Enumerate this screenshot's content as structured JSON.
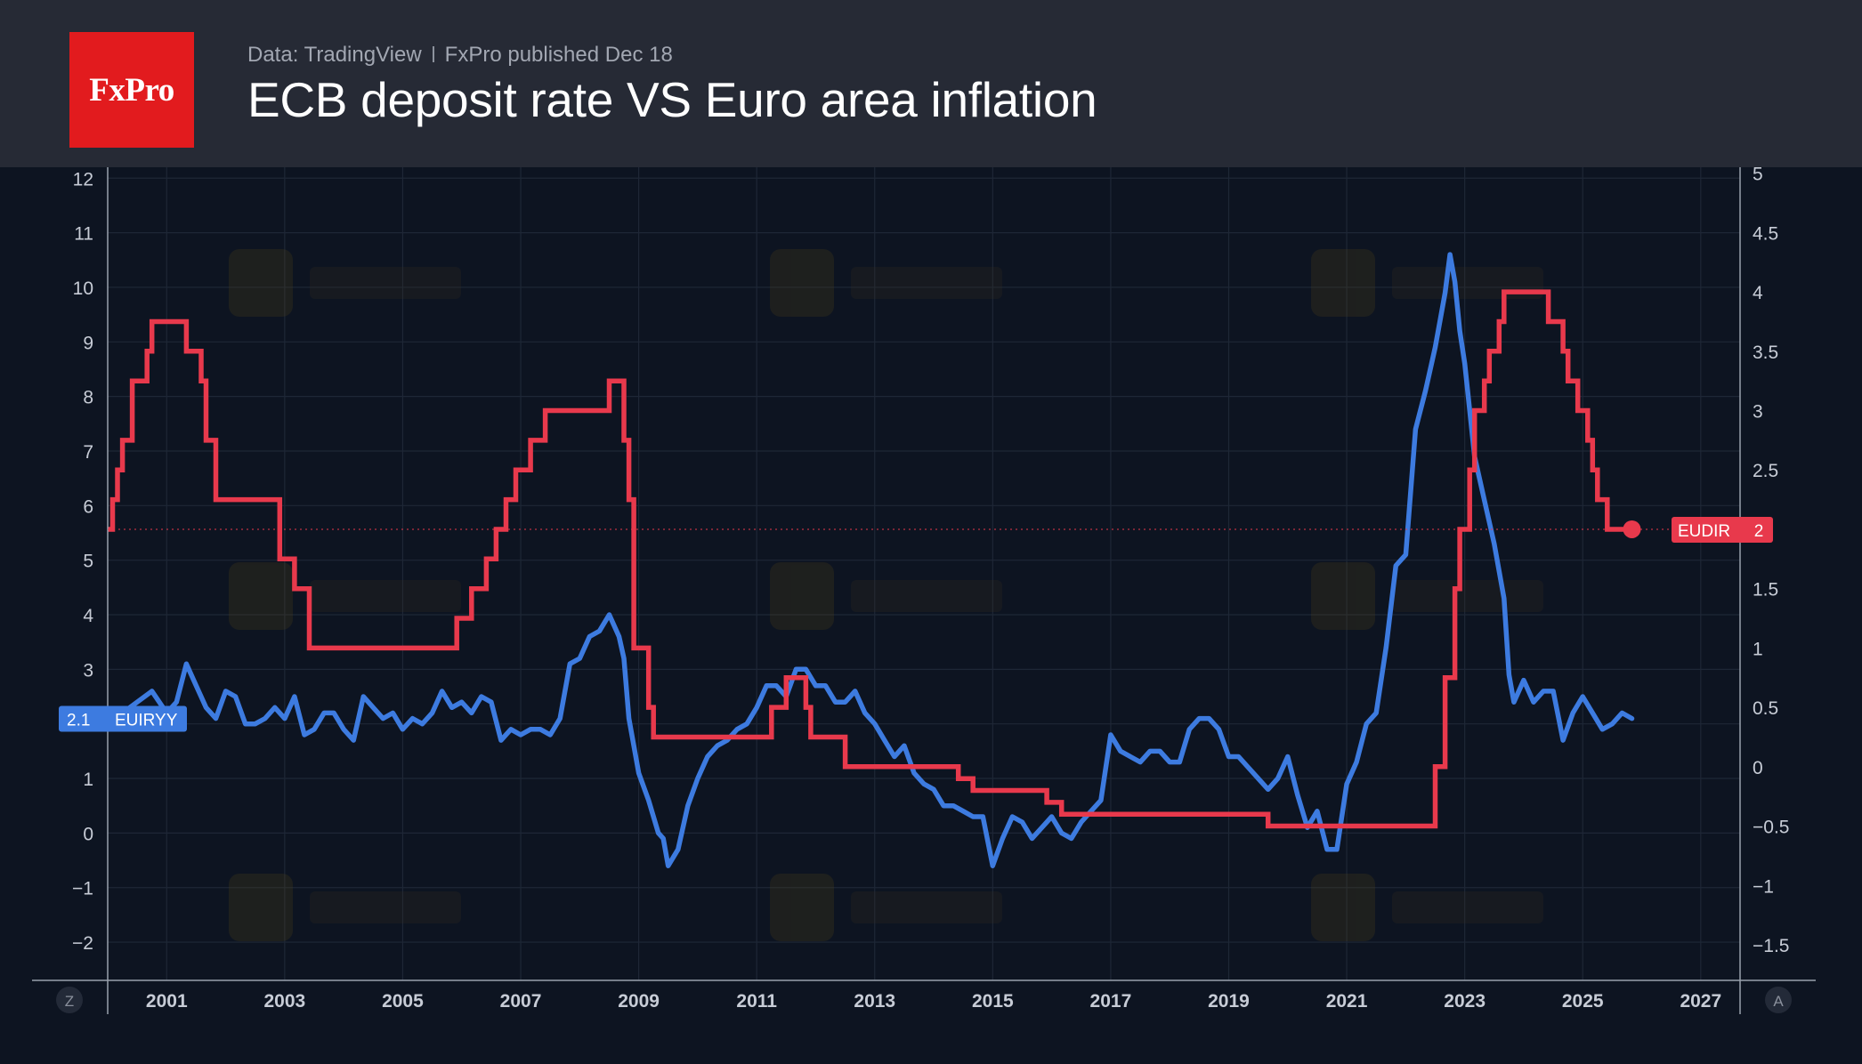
{
  "header": {
    "logo_text": "FxPro",
    "source": "Data: TradingView",
    "published": "FxPro published Dec 18",
    "title": "ECB deposit rate VS Euro area inflation"
  },
  "corner_buttons": {
    "left": "Z",
    "right": "A"
  },
  "colors": {
    "inflation": "#3d7be0",
    "deposit_rate": "#e8394c",
    "background": "#0d1421",
    "header": "#262a35",
    "grid": "#1e2736",
    "axis_text": "#c7ccd6"
  },
  "chart_data": {
    "type": "line",
    "title": "ECB deposit rate VS Euro area inflation",
    "x_ticks": [
      "2001",
      "2003",
      "2005",
      "2007",
      "2009",
      "2011",
      "2013",
      "2015",
      "2017",
      "2019",
      "2021",
      "2023",
      "2025",
      "2027"
    ],
    "xlim": [
      "2000-01",
      "2027-09"
    ],
    "left_axis": {
      "ticks": [
        "12",
        "11",
        "10",
        "9",
        "8",
        "7",
        "6",
        "5",
        "4",
        "3",
        "2",
        "1",
        "0",
        "−1",
        "−2"
      ],
      "ylim": [
        -2.7,
        12.2
      ]
    },
    "right_axis": {
      "ticks": [
        "5",
        "4.5",
        "4",
        "3.5",
        "3",
        "2.5",
        "2",
        "1.5",
        "1",
        "0.5",
        "0",
        "−0.5",
        "−1",
        "−1.5"
      ],
      "ylim": [
        -1.8,
        5.05
      ]
    },
    "grid": true,
    "series": [
      {
        "name": "EUIRYY",
        "axis": "left",
        "last_value": "2.1",
        "points": [
          [
            "2000-01",
            1.9
          ],
          [
            "2000-04",
            2.2
          ],
          [
            "2000-07",
            2.4
          ],
          [
            "2000-10",
            2.6
          ],
          [
            "2001-01",
            2.2
          ],
          [
            "2001-03",
            2.4
          ],
          [
            "2001-05",
            3.1
          ],
          [
            "2001-07",
            2.7
          ],
          [
            "2001-09",
            2.3
          ],
          [
            "2001-11",
            2.1
          ],
          [
            "2002-01",
            2.6
          ],
          [
            "2002-03",
            2.5
          ],
          [
            "2002-05",
            2.0
          ],
          [
            "2002-07",
            2.0
          ],
          [
            "2002-09",
            2.1
          ],
          [
            "2002-11",
            2.3
          ],
          [
            "2003-01",
            2.1
          ],
          [
            "2003-03",
            2.5
          ],
          [
            "2003-05",
            1.8
          ],
          [
            "2003-07",
            1.9
          ],
          [
            "2003-09",
            2.2
          ],
          [
            "2003-11",
            2.2
          ],
          [
            "2004-01",
            1.9
          ],
          [
            "2004-03",
            1.7
          ],
          [
            "2004-05",
            2.5
          ],
          [
            "2004-07",
            2.3
          ],
          [
            "2004-09",
            2.1
          ],
          [
            "2004-11",
            2.2
          ],
          [
            "2005-01",
            1.9
          ],
          [
            "2005-03",
            2.1
          ],
          [
            "2005-05",
            2.0
          ],
          [
            "2005-07",
            2.2
          ],
          [
            "2005-09",
            2.6
          ],
          [
            "2005-11",
            2.3
          ],
          [
            "2006-01",
            2.4
          ],
          [
            "2006-03",
            2.2
          ],
          [
            "2006-05",
            2.5
          ],
          [
            "2006-07",
            2.4
          ],
          [
            "2006-09",
            1.7
          ],
          [
            "2006-11",
            1.9
          ],
          [
            "2007-01",
            1.8
          ],
          [
            "2007-03",
            1.9
          ],
          [
            "2007-05",
            1.9
          ],
          [
            "2007-07",
            1.8
          ],
          [
            "2007-09",
            2.1
          ],
          [
            "2007-11",
            3.1
          ],
          [
            "2008-01",
            3.2
          ],
          [
            "2008-03",
            3.6
          ],
          [
            "2008-05",
            3.7
          ],
          [
            "2008-07",
            4.0
          ],
          [
            "2008-09",
            3.6
          ],
          [
            "2008-10",
            3.2
          ],
          [
            "2008-11",
            2.1
          ],
          [
            "2008-12",
            1.6
          ],
          [
            "2009-01",
            1.1
          ],
          [
            "2009-03",
            0.6
          ],
          [
            "2009-05",
            0.0
          ],
          [
            "2009-06",
            -0.1
          ],
          [
            "2009-07",
            -0.6
          ],
          [
            "2009-09",
            -0.3
          ],
          [
            "2009-11",
            0.5
          ],
          [
            "2010-01",
            1.0
          ],
          [
            "2010-03",
            1.4
          ],
          [
            "2010-05",
            1.6
          ],
          [
            "2010-07",
            1.7
          ],
          [
            "2010-09",
            1.9
          ],
          [
            "2010-11",
            2.0
          ],
          [
            "2011-01",
            2.3
          ],
          [
            "2011-03",
            2.7
          ],
          [
            "2011-05",
            2.7
          ],
          [
            "2011-07",
            2.5
          ],
          [
            "2011-09",
            3.0
          ],
          [
            "2011-11",
            3.0
          ],
          [
            "2012-01",
            2.7
          ],
          [
            "2012-03",
            2.7
          ],
          [
            "2012-05",
            2.4
          ],
          [
            "2012-07",
            2.4
          ],
          [
            "2012-09",
            2.6
          ],
          [
            "2012-11",
            2.2
          ],
          [
            "2013-01",
            2.0
          ],
          [
            "2013-03",
            1.7
          ],
          [
            "2013-05",
            1.4
          ],
          [
            "2013-07",
            1.6
          ],
          [
            "2013-09",
            1.1
          ],
          [
            "2013-11",
            0.9
          ],
          [
            "2014-01",
            0.8
          ],
          [
            "2014-03",
            0.5
          ],
          [
            "2014-05",
            0.5
          ],
          [
            "2014-07",
            0.4
          ],
          [
            "2014-09",
            0.3
          ],
          [
            "2014-11",
            0.3
          ],
          [
            "2015-01",
            -0.6
          ],
          [
            "2015-03",
            -0.1
          ],
          [
            "2015-05",
            0.3
          ],
          [
            "2015-07",
            0.2
          ],
          [
            "2015-09",
            -0.1
          ],
          [
            "2015-11",
            0.1
          ],
          [
            "2016-01",
            0.3
          ],
          [
            "2016-03",
            0.0
          ],
          [
            "2016-05",
            -0.1
          ],
          [
            "2016-07",
            0.2
          ],
          [
            "2016-09",
            0.4
          ],
          [
            "2016-11",
            0.6
          ],
          [
            "2017-01",
            1.8
          ],
          [
            "2017-03",
            1.5
          ],
          [
            "2017-05",
            1.4
          ],
          [
            "2017-07",
            1.3
          ],
          [
            "2017-09",
            1.5
          ],
          [
            "2017-11",
            1.5
          ],
          [
            "2018-01",
            1.3
          ],
          [
            "2018-03",
            1.3
          ],
          [
            "2018-05",
            1.9
          ],
          [
            "2018-07",
            2.1
          ],
          [
            "2018-09",
            2.1
          ],
          [
            "2018-11",
            1.9
          ],
          [
            "2019-01",
            1.4
          ],
          [
            "2019-03",
            1.4
          ],
          [
            "2019-05",
            1.2
          ],
          [
            "2019-07",
            1.0
          ],
          [
            "2019-09",
            0.8
          ],
          [
            "2019-11",
            1.0
          ],
          [
            "2020-01",
            1.4
          ],
          [
            "2020-03",
            0.7
          ],
          [
            "2020-05",
            0.1
          ],
          [
            "2020-07",
            0.4
          ],
          [
            "2020-09",
            -0.3
          ],
          [
            "2020-11",
            -0.3
          ],
          [
            "2021-01",
            0.9
          ],
          [
            "2021-03",
            1.3
          ],
          [
            "2021-05",
            2.0
          ],
          [
            "2021-07",
            2.2
          ],
          [
            "2021-09",
            3.4
          ],
          [
            "2021-11",
            4.9
          ],
          [
            "2022-01",
            5.1
          ],
          [
            "2022-03",
            7.4
          ],
          [
            "2022-05",
            8.1
          ],
          [
            "2022-07",
            8.9
          ],
          [
            "2022-09",
            9.9
          ],
          [
            "2022-10",
            10.6
          ],
          [
            "2022-11",
            10.1
          ],
          [
            "2022-12",
            9.2
          ],
          [
            "2023-01",
            8.6
          ],
          [
            "2023-03",
            6.9
          ],
          [
            "2023-05",
            6.1
          ],
          [
            "2023-07",
            5.3
          ],
          [
            "2023-09",
            4.3
          ],
          [
            "2023-10",
            2.9
          ],
          [
            "2023-11",
            2.4
          ],
          [
            "2024-01",
            2.8
          ],
          [
            "2024-03",
            2.4
          ],
          [
            "2024-05",
            2.6
          ],
          [
            "2024-07",
            2.6
          ],
          [
            "2024-09",
            1.7
          ],
          [
            "2024-11",
            2.2
          ],
          [
            "2025-01",
            2.5
          ],
          [
            "2025-03",
            2.2
          ],
          [
            "2025-05",
            1.9
          ],
          [
            "2025-07",
            2.0
          ],
          [
            "2025-09",
            2.2
          ],
          [
            "2025-11",
            2.1
          ]
        ]
      },
      {
        "name": "EUDIR",
        "axis": "right",
        "last_value": "2",
        "points": [
          [
            "2000-01",
            2.0
          ],
          [
            "2000-02",
            2.25
          ],
          [
            "2000-03",
            2.5
          ],
          [
            "2000-04",
            2.75
          ],
          [
            "2000-06",
            3.25
          ],
          [
            "2000-09",
            3.5
          ],
          [
            "2000-10",
            3.75
          ],
          [
            "2001-05",
            3.5
          ],
          [
            "2001-08",
            3.25
          ],
          [
            "2001-09",
            2.75
          ],
          [
            "2001-11",
            2.25
          ],
          [
            "2002-12",
            1.75
          ],
          [
            "2003-03",
            1.5
          ],
          [
            "2003-06",
            1.0
          ],
          [
            "2005-12",
            1.25
          ],
          [
            "2006-03",
            1.5
          ],
          [
            "2006-06",
            1.75
          ],
          [
            "2006-08",
            2.0
          ],
          [
            "2006-10",
            2.25
          ],
          [
            "2006-12",
            2.5
          ],
          [
            "2007-03",
            2.75
          ],
          [
            "2007-06",
            3.0
          ],
          [
            "2008-07",
            3.25
          ],
          [
            "2008-10",
            2.75
          ],
          [
            "2008-11",
            2.25
          ],
          [
            "2008-12",
            1.0
          ],
          [
            "2009-01",
            1.0
          ],
          [
            "2009-03",
            0.5
          ],
          [
            "2009-04",
            0.25
          ],
          [
            "2011-04",
            0.5
          ],
          [
            "2011-07",
            0.75
          ],
          [
            "2011-11",
            0.5
          ],
          [
            "2011-12",
            0.25
          ],
          [
            "2012-07",
            0.0
          ],
          [
            "2014-06",
            -0.1
          ],
          [
            "2014-09",
            -0.2
          ],
          [
            "2015-12",
            -0.3
          ],
          [
            "2016-03",
            -0.4
          ],
          [
            "2019-09",
            -0.5
          ],
          [
            "2022-07",
            0.0
          ],
          [
            "2022-09",
            0.75
          ],
          [
            "2022-11",
            1.5
          ],
          [
            "2022-12",
            2.0
          ],
          [
            "2023-02",
            2.5
          ],
          [
            "2023-03",
            3.0
          ],
          [
            "2023-05",
            3.25
          ],
          [
            "2023-06",
            3.5
          ],
          [
            "2023-08",
            3.75
          ],
          [
            "2023-09",
            4.0
          ],
          [
            "2024-06",
            3.75
          ],
          [
            "2024-09",
            3.5
          ],
          [
            "2024-10",
            3.25
          ],
          [
            "2024-12",
            3.0
          ],
          [
            "2025-02",
            2.75
          ],
          [
            "2025-03",
            2.5
          ],
          [
            "2025-04",
            2.25
          ],
          [
            "2025-06",
            2.0
          ],
          [
            "2025-11",
            2.0
          ]
        ]
      }
    ]
  }
}
